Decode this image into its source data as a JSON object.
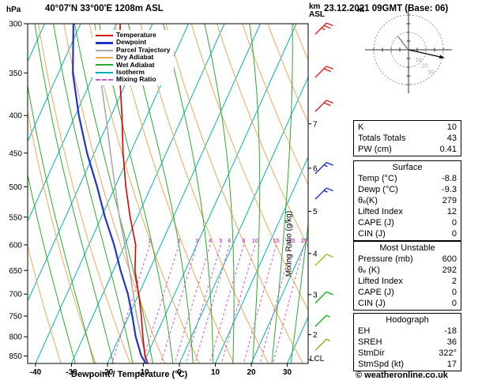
{
  "header": {
    "station": "40°07'N 33°00'E 1208m ASL",
    "datetime": "23.12.2021 09GMT (Base: 06)",
    "credit": "© weatheronline.co.uk"
  },
  "axes": {
    "pressure_unit": "hPa",
    "km_line1": "km",
    "km_line2": "ASL",
    "lcl_label": "LCL",
    "xlabel": "Dewpoint / Temperature (°C)",
    "mixing_label": "Mixing Ratio (g/kg)",
    "pressure_ticks": [
      300,
      350,
      400,
      450,
      500,
      550,
      600,
      650,
      700,
      750,
      800,
      850
    ],
    "temp_ticks": [
      -40,
      -30,
      -20,
      -10,
      0,
      10,
      20,
      30
    ],
    "km_ticks": [
      2,
      3,
      4,
      5,
      6,
      7
    ]
  },
  "legend": {
    "items": [
      {
        "label": "Temperature",
        "color": "#dd0000"
      },
      {
        "label": "Dewpoint",
        "color": "#2233cc",
        "thick": true
      },
      {
        "label": "Parcel Trajectory",
        "color": "#aaaaaa"
      },
      {
        "label": "Dry Adiabat",
        "color": "#f0a858"
      },
      {
        "label": "Wet Adiabat",
        "color": "#2eaa2e"
      },
      {
        "label": "Isotherm",
        "color": "#00b4b4"
      },
      {
        "label": "Mixing Ratio",
        "color": "#cc55cc",
        "dashed": true
      }
    ]
  },
  "chart_data": {
    "type": "line",
    "p_bottom": 870,
    "p_top": 300,
    "skew": 0.45,
    "xlim_C": [
      -43,
      36
    ],
    "pressure_levels": [
      870,
      850,
      800,
      750,
      700,
      650,
      600,
      550,
      500,
      450,
      400,
      350,
      300
    ],
    "series": [
      {
        "name": "Temperature",
        "color": "#dd0000",
        "width": 1.6,
        "values": [
          -8.8,
          -10.5,
          -13.5,
          -16.5,
          -20,
          -24,
          -27,
          -32,
          -37,
          -42,
          -47,
          -53,
          -59
        ]
      },
      {
        "name": "Dewpoint",
        "color": "#2233cc",
        "width": 2.2,
        "values": [
          -9.3,
          -11.5,
          -15.5,
          -19,
          -23,
          -28,
          -33,
          -39,
          -45,
          -52,
          -59,
          -66,
          -72
        ]
      },
      {
        "name": "Parcel Trajectory",
        "color": "#aaaaaa",
        "width": 1.6,
        "values": [
          -8.8,
          -10.3,
          -14,
          -17.8,
          -21.5,
          -25.5,
          -30,
          -35,
          -40,
          -45.5,
          -51.5,
          -58.5,
          -66
        ]
      }
    ],
    "isotherms_C": {
      "min": -120,
      "max": 40,
      "step": 10,
      "color": "#00b4b4"
    },
    "dry_adiabats_K": {
      "min": 250,
      "max": 390,
      "step": 10,
      "color": "#f0a858"
    },
    "wet_adiabats_start_C": {
      "min": -20,
      "max": 35,
      "step": 5,
      "color": "#2eaa2e"
    },
    "mixing_ratio_g_kg": [
      1,
      2,
      3,
      4,
      5,
      6,
      8,
      10,
      15,
      20,
      25
    ],
    "mixing_color": "#cc55cc",
    "mixing_label_pressure": 600,
    "lcl_pressure": 860
  },
  "wind_barbs": [
    {
      "pressure": 310,
      "speed_kt": 25,
      "color": "#dd2222"
    },
    {
      "pressure": 355,
      "speed_kt": 20,
      "color": "#dd2222"
    },
    {
      "pressure": 395,
      "speed_kt": 20,
      "color": "#dd2222"
    },
    {
      "pressure": 480,
      "speed_kt": 15,
      "color": "#2233cc"
    },
    {
      "pressure": 520,
      "speed_kt": 15,
      "color": "#2233cc"
    },
    {
      "pressure": 640,
      "speed_kt": 10,
      "color": "#a8b820"
    },
    {
      "pressure": 720,
      "speed_kt": 10,
      "color": "#22aa22"
    },
    {
      "pressure": 775,
      "speed_kt": 5,
      "color": "#22aa22"
    },
    {
      "pressure": 835,
      "speed_kt": 5,
      "color": "#88aa22"
    }
  ],
  "hodograph": {
    "unit": "kt",
    "rings_kt": [
      20,
      40
    ],
    "axis_labels_kt": [
      10,
      20,
      30
    ]
  },
  "panels": [
    {
      "name": "stability-indices-panel",
      "rows": [
        {
          "label": "K",
          "value": "10"
        },
        {
          "label": "Totals Totals",
          "value": "43"
        },
        {
          "label": "PW (cm)",
          "value": "0.41"
        }
      ]
    },
    {
      "name": "surface-panel",
      "title": "Surface",
      "rows": [
        {
          "label": "Temp (°C)",
          "value": "-8.8"
        },
        {
          "label": "Dewp (°C)",
          "value": "-9.3"
        },
        {
          "label": "θₑ(K)",
          "value": "279"
        },
        {
          "label": "Lifted Index",
          "value": "12"
        },
        {
          "label": "CAPE (J)",
          "value": "0"
        },
        {
          "label": "CIN (J)",
          "value": "0"
        }
      ]
    },
    {
      "name": "most-unstable-panel",
      "title": "Most Unstable",
      "rows": [
        {
          "label": "Pressure (mb)",
          "value": "600"
        },
        {
          "label": "θₑ (K)",
          "value": "292"
        },
        {
          "label": "Lifted Index",
          "value": "2"
        },
        {
          "label": "CAPE (J)",
          "value": "0"
        },
        {
          "label": "CIN (J)",
          "value": "0"
        }
      ]
    },
    {
      "name": "hodograph-panel",
      "title": "Hodograph",
      "rows": [
        {
          "label": "EH",
          "value": "-18"
        },
        {
          "label": "SREH",
          "value": "36"
        },
        {
          "label": "StmDir",
          "value": "322°"
        },
        {
          "label": "StmSpd (kt)",
          "value": "17"
        }
      ]
    }
  ]
}
